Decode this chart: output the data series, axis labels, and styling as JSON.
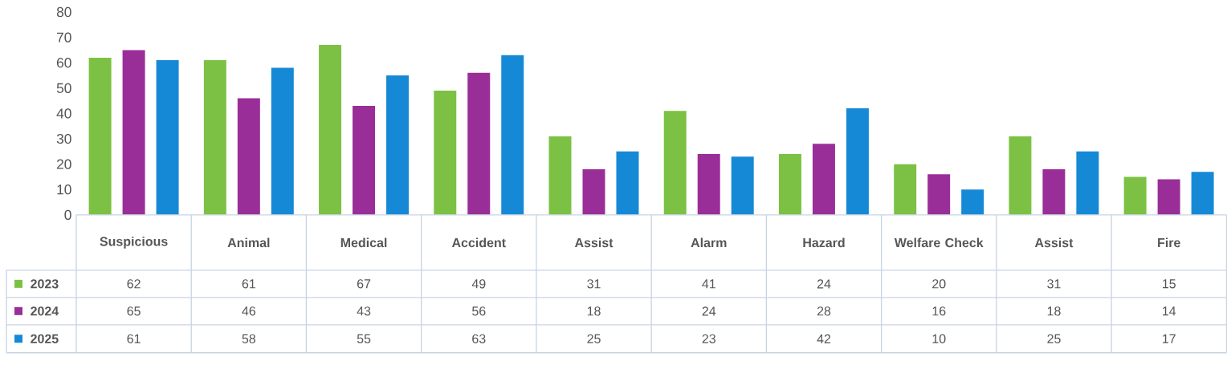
{
  "chart_data": {
    "type": "bar",
    "categories": [
      "Suspicious",
      "Animal",
      "Medical",
      "Accident",
      "Assist",
      "Alarm",
      "Hazard",
      "Welfare Check",
      "Assist",
      "Fire"
    ],
    "series": [
      {
        "name": "2023",
        "color": "#7cc144",
        "values": [
          62,
          61,
          67,
          49,
          31,
          41,
          24,
          20,
          31,
          15
        ]
      },
      {
        "name": "2024",
        "color": "#9a2e98",
        "values": [
          65,
          46,
          43,
          56,
          18,
          24,
          28,
          16,
          18,
          14
        ]
      },
      {
        "name": "2025",
        "color": "#1689d6",
        "values": [
          61,
          58,
          55,
          63,
          25,
          23,
          42,
          10,
          25,
          17
        ]
      }
    ],
    "ylim": [
      0,
      80
    ],
    "yticks": [
      0,
      10,
      20,
      30,
      40,
      50,
      60,
      70,
      80
    ],
    "grid": false,
    "legend": "bottom left",
    "data_labels": true
  }
}
